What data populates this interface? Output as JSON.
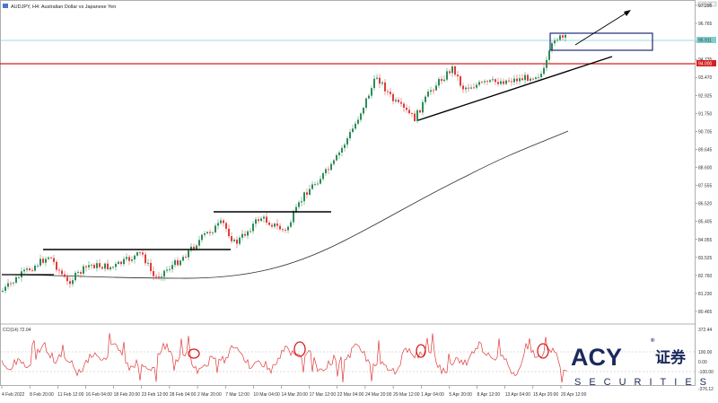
{
  "header": {
    "title": "AUDJPY, H4: Australian Dollar vs Japanese Yen"
  },
  "price_axis": {
    "labels": [
      "97.295",
      "96.765",
      "95.660",
      "94.735",
      "93.470",
      "92.925",
      "91.750",
      "90.705",
      "89.645",
      "88.600",
      "87.555",
      "86.520",
      "85.405",
      "84.055",
      "83.525",
      "82.760",
      "81.230",
      "80.465"
    ],
    "current_price": "95.911",
    "level_price": "94.000"
  },
  "indicator": {
    "label": "CCI(14) 72.04",
    "axis_labels": [
      "372.44",
      "100.00",
      "0.00",
      "-100.00",
      "-376.12"
    ]
  },
  "time_axis": {
    "labels": [
      "4 Feb 2022",
      "8 Feb 20:00",
      "11 Feb 12:00",
      "16 Feb 04:00",
      "18 Feb 20:00",
      "23 Feb 12:00",
      "28 Feb 04:00",
      "2 Mar 20:00",
      "7 Mar 12:00",
      "10 Mar 04:00",
      "14 Mar 20:00",
      "17 Mar 12:00",
      "22 Mar 04:00",
      "24 Mar 20:00",
      "29 Mar 12:00",
      "1 Apr 04:00",
      "5 Apr 20:00",
      "8 Apr 12:00",
      "13 Apr 04:00",
      "15 Apr 20:00",
      "20 Apr 12:00"
    ]
  },
  "logo": {
    "brand": "ACY",
    "chinese": "证券",
    "sub": "SECURITIES",
    "mark": "®"
  },
  "colors": {
    "bull": "#2e8b57",
    "bear": "#e03b3b",
    "ma": "#2b2b2b",
    "cyan_line": "#7fcfcf",
    "red_level": "#d62020",
    "box": "#1e2a7a",
    "cci": "#e03b3b"
  }
}
